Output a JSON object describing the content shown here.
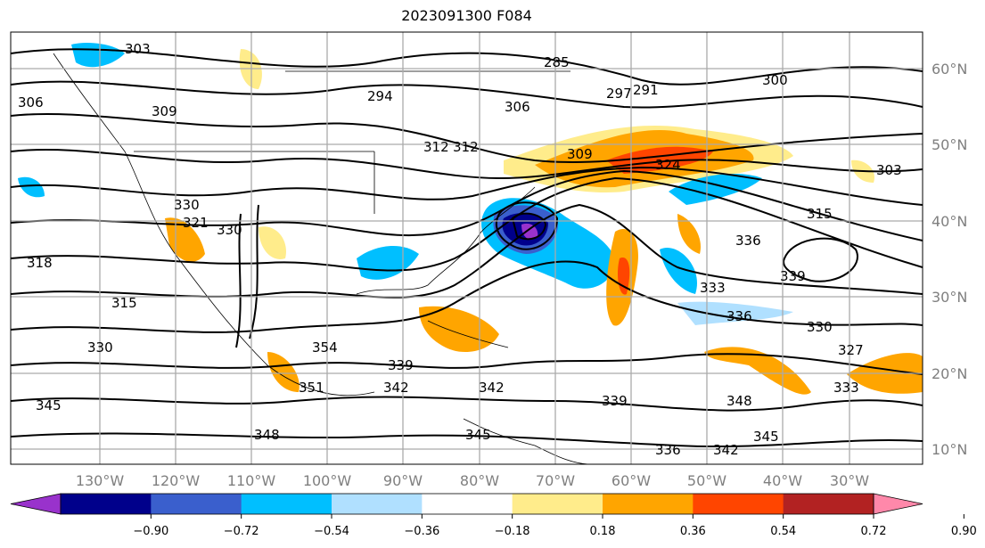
{
  "title": "2023091300 F084",
  "lon_labels": [
    "130°W",
    "120°W",
    "110°W",
    "100°W",
    "90°W",
    "80°W",
    "70°W",
    "60°W",
    "50°W",
    "40°W",
    "30°W"
  ],
  "lat_labels": [
    "60°N",
    "50°N",
    "40°N",
    "30°N",
    "20°N",
    "10°N"
  ],
  "contour_labels": [
    "303",
    "306",
    "309",
    "312",
    "315",
    "318",
    "321",
    "324",
    "330",
    "285",
    "291",
    "294",
    "297",
    "300",
    "303",
    "306",
    "309",
    "312",
    "315",
    "330",
    "336",
    "339",
    "333",
    "336",
    "330",
    "327",
    "333",
    "345",
    "348",
    "345",
    "348",
    "342",
    "342",
    "339",
    "336",
    "342",
    "351",
    "354",
    "330",
    "339",
    "345"
  ],
  "colorbar": {
    "ticks": [
      "−0.90",
      "−0.72",
      "−0.54",
      "−0.36",
      "−0.18",
      "0.18",
      "0.36",
      "0.54",
      "0.72",
      "0.90"
    ],
    "colors": [
      "#9932cc",
      "#00008b",
      "#3a5fcd",
      "#00bfff",
      "#b0e0ff",
      "#ffffff",
      "#ffec8b",
      "#ffa500",
      "#ff4500",
      "#b22222",
      "#ff88aa"
    ]
  }
}
